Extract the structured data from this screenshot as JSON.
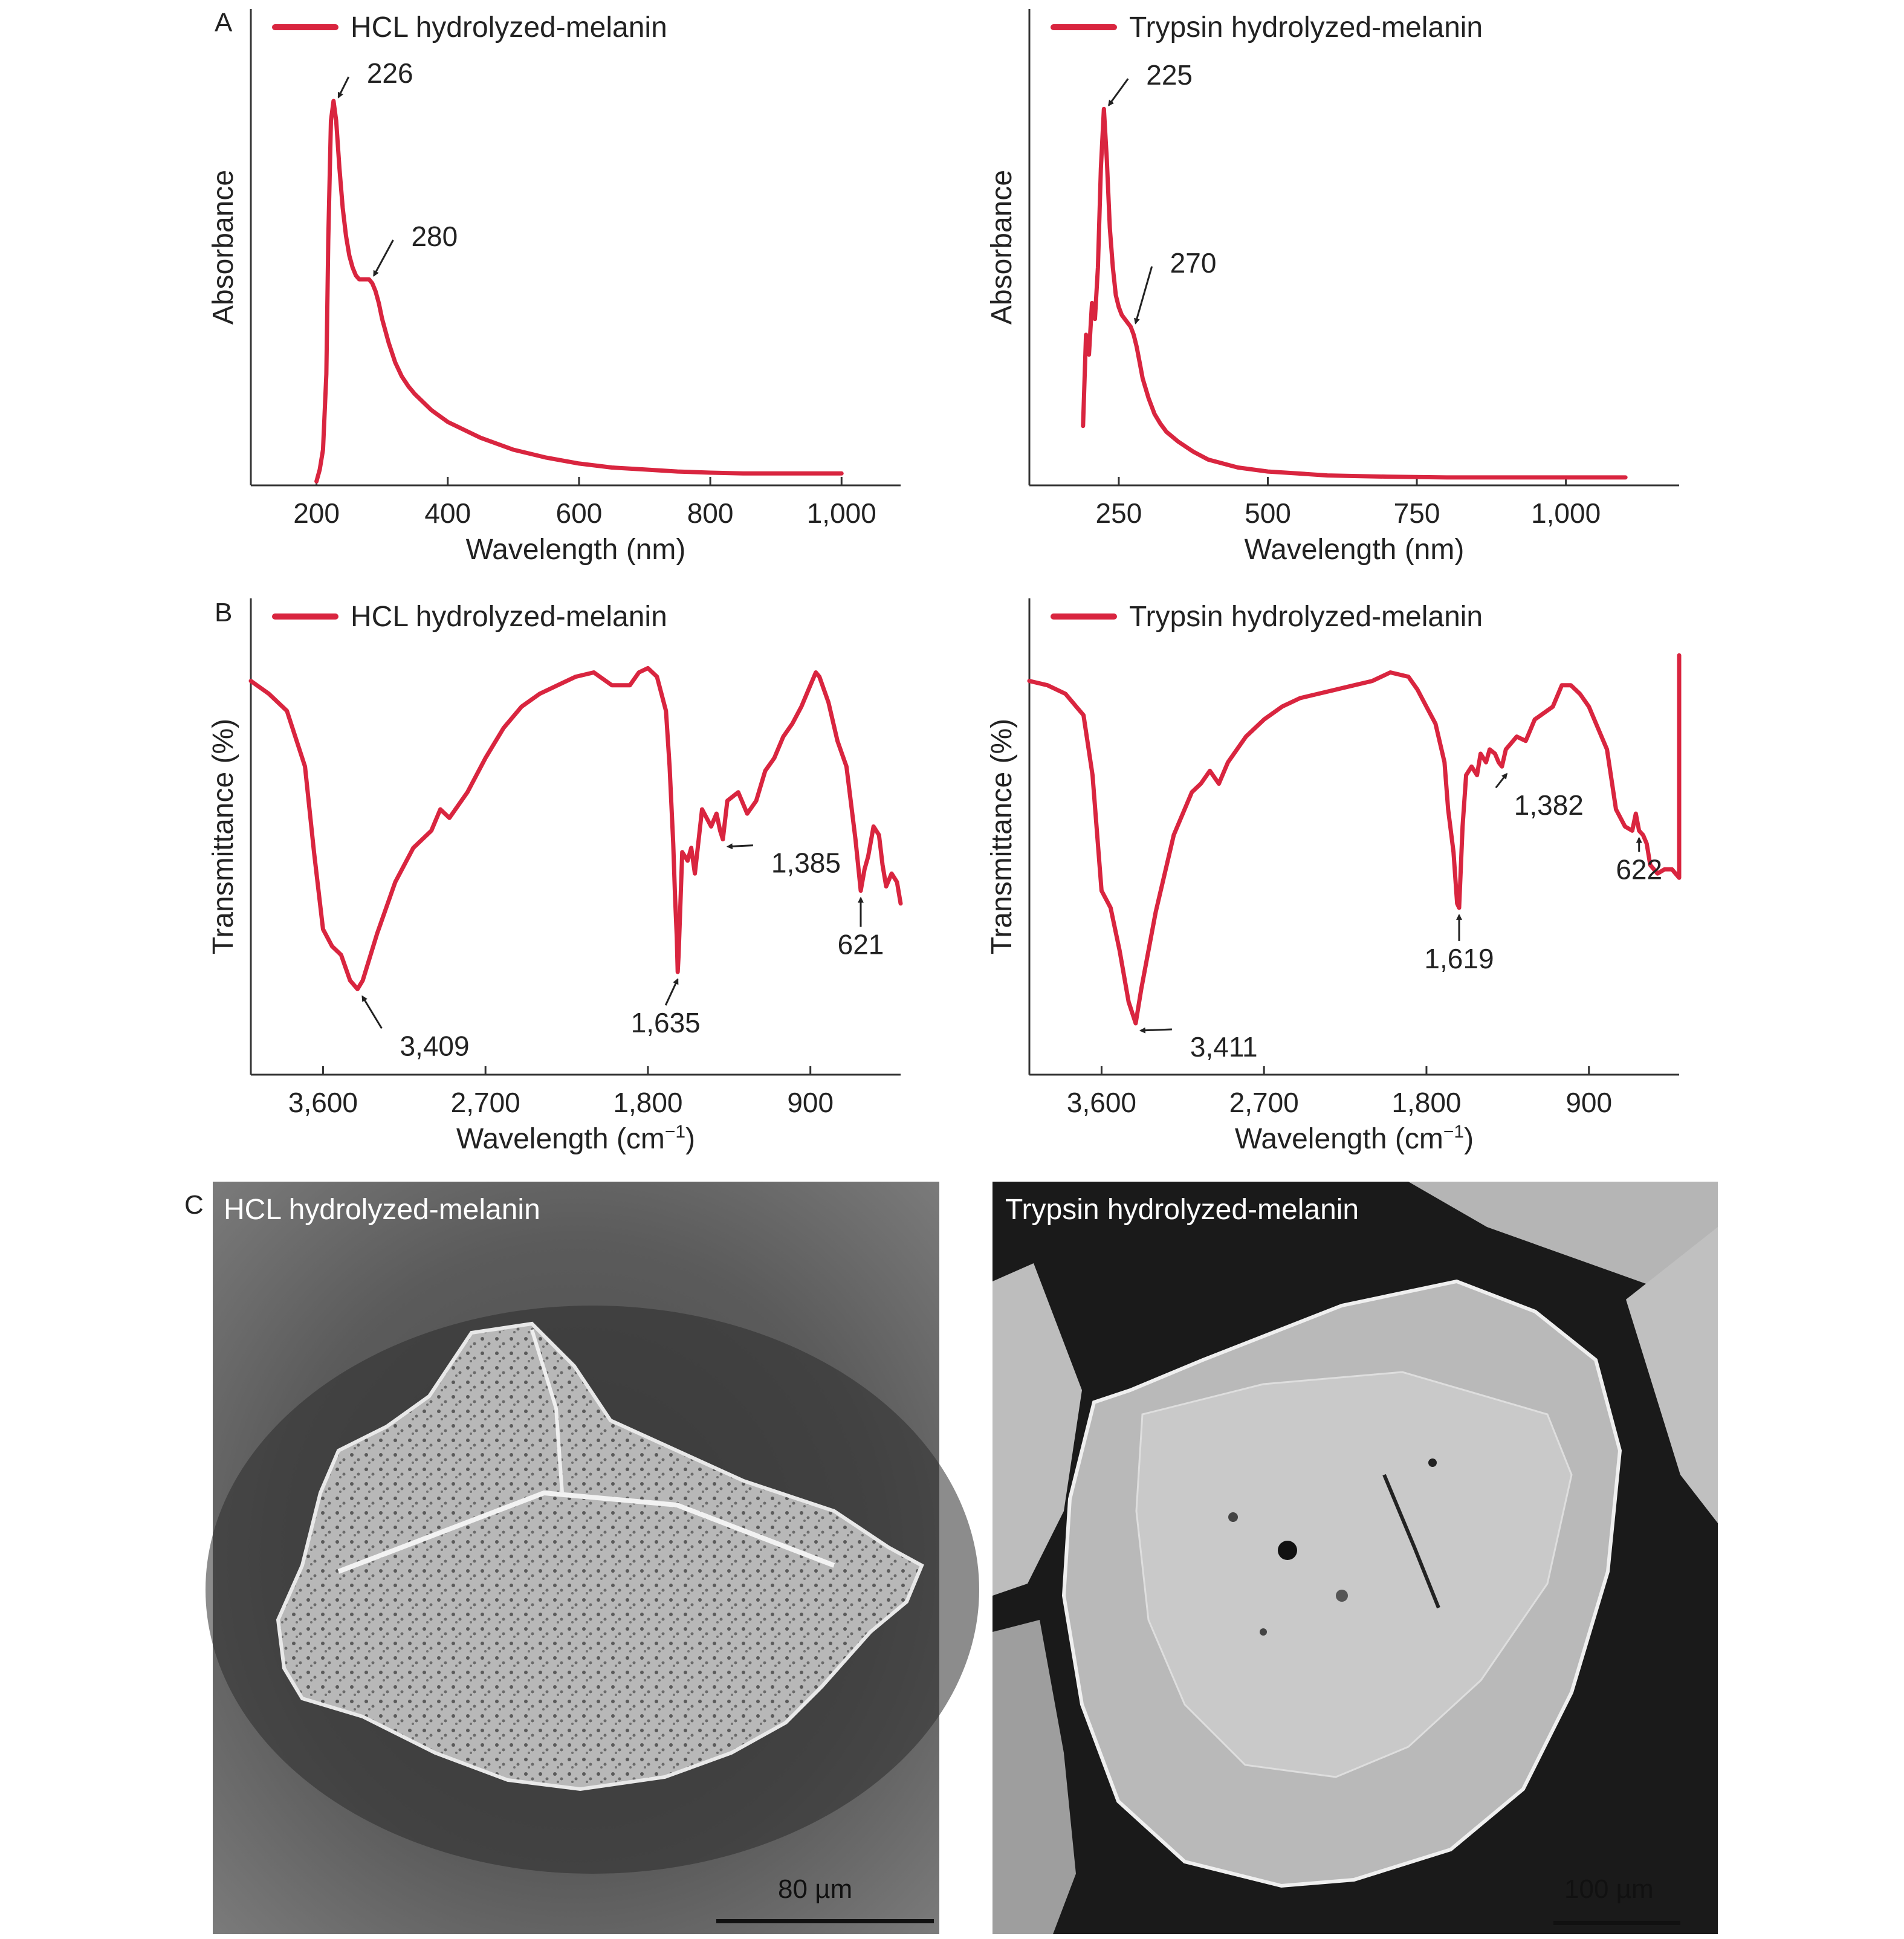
{
  "colors": {
    "series": "#d9253f",
    "axis": "#333333"
  },
  "panels": {
    "A": "A",
    "B": "B",
    "C": "C"
  },
  "chart_data": [
    {
      "id": "uv_hcl",
      "type": "line",
      "legend": "HCL hydrolyzed-melanin",
      "xlabel": "Wavelength (nm)",
      "ylabel": "Absorbance",
      "xlim": [
        100,
        1090
      ],
      "ylim": [
        0,
        1.08
      ],
      "xticks": [
        200,
        400,
        600,
        800,
        1000
      ],
      "xticklabels": [
        "200",
        "400",
        "600",
        "800",
        "1,000"
      ],
      "series": [
        {
          "x": [
            200,
            205,
            210,
            215,
            218,
            222,
            226,
            230,
            235,
            240,
            245,
            250,
            255,
            260,
            265,
            270,
            275,
            280,
            285,
            290,
            295,
            300,
            310,
            320,
            330,
            340,
            350,
            375,
            400,
            450,
            500,
            550,
            600,
            650,
            700,
            750,
            800,
            850,
            900,
            950,
            1000
          ],
          "y": [
            0.01,
            0.04,
            0.09,
            0.28,
            0.62,
            0.92,
            0.97,
            0.92,
            0.8,
            0.7,
            0.63,
            0.58,
            0.55,
            0.53,
            0.52,
            0.52,
            0.52,
            0.52,
            0.51,
            0.49,
            0.46,
            0.42,
            0.36,
            0.31,
            0.275,
            0.25,
            0.23,
            0.19,
            0.16,
            0.12,
            0.09,
            0.07,
            0.055,
            0.045,
            0.04,
            0.035,
            0.032,
            0.03,
            0.03,
            0.03,
            0.03
          ]
        }
      ],
      "annotations": [
        {
          "text": "226",
          "x": 226,
          "y": 0.97
        },
        {
          "text": "280",
          "x": 280,
          "y": 0.52
        }
      ]
    },
    {
      "id": "uv_trypsin",
      "type": "line",
      "legend": "Trypsin hydrolyzed-melanin",
      "xlabel": "Wavelength (nm)",
      "ylabel": "Absorbance",
      "xlim": [
        100,
        1190
      ],
      "ylim": [
        0,
        1.08
      ],
      "xticks": [
        250,
        500,
        750,
        1000
      ],
      "xticklabels": [
        "250",
        "500",
        "750",
        "1,000"
      ],
      "series": [
        {
          "x": [
            190,
            195,
            200,
            205,
            210,
            215,
            220,
            225,
            230,
            235,
            240,
            245,
            250,
            255,
            260,
            265,
            270,
            275,
            280,
            285,
            290,
            300,
            310,
            320,
            330,
            350,
            375,
            400,
            450,
            500,
            550,
            600,
            700,
            800,
            900,
            1000,
            1100
          ],
          "y": [
            0.15,
            0.38,
            0.33,
            0.46,
            0.42,
            0.55,
            0.8,
            0.95,
            0.82,
            0.65,
            0.55,
            0.48,
            0.45,
            0.43,
            0.42,
            0.41,
            0.4,
            0.38,
            0.35,
            0.31,
            0.27,
            0.22,
            0.18,
            0.155,
            0.135,
            0.11,
            0.085,
            0.065,
            0.045,
            0.035,
            0.03,
            0.025,
            0.022,
            0.02,
            0.02,
            0.02,
            0.02
          ]
        }
      ],
      "annotations": [
        {
          "text": "225",
          "x": 225,
          "y": 0.95
        },
        {
          "text": "270",
          "x": 270,
          "y": 0.4
        }
      ]
    },
    {
      "id": "ir_hcl",
      "type": "line",
      "legend": "HCL hydrolyzed-melanin",
      "xlabel": "Wavelength (cm",
      "xlabel_sup": "−1",
      "xlabel_end": ")",
      "ylabel": "Transmittance (%)",
      "xlim": [
        4000,
        400
      ],
      "ylim": [
        0,
        1
      ],
      "xticks": [
        3600,
        2700,
        1800,
        900
      ],
      "xticklabels": [
        "3,600",
        "2,700",
        "1,800",
        "900"
      ],
      "series": [
        {
          "x": [
            4000,
            3900,
            3800,
            3700,
            3650,
            3600,
            3550,
            3500,
            3450,
            3409,
            3380,
            3300,
            3200,
            3100,
            3000,
            2950,
            2900,
            2800,
            2700,
            2600,
            2500,
            2400,
            2300,
            2200,
            2100,
            2000,
            1900,
            1850,
            1800,
            1750,
            1700,
            1680,
            1660,
            1650,
            1640,
            1635,
            1630,
            1610,
            1580,
            1560,
            1540,
            1500,
            1450,
            1420,
            1400,
            1385,
            1360,
            1300,
            1250,
            1200,
            1150,
            1100,
            1050,
            1000,
            950,
            900,
            870,
            850,
            800,
            750,
            700,
            650,
            621,
            600,
            580,
            550,
            520,
            500,
            480,
            450,
            420,
            400
          ],
          "y": [
            0.92,
            0.89,
            0.85,
            0.72,
            0.52,
            0.34,
            0.3,
            0.28,
            0.22,
            0.2,
            0.22,
            0.33,
            0.45,
            0.53,
            0.57,
            0.62,
            0.6,
            0.66,
            0.74,
            0.81,
            0.86,
            0.89,
            0.91,
            0.93,
            0.94,
            0.91,
            0.91,
            0.94,
            0.95,
            0.93,
            0.85,
            0.72,
            0.54,
            0.42,
            0.32,
            0.24,
            0.28,
            0.52,
            0.5,
            0.53,
            0.47,
            0.62,
            0.58,
            0.61,
            0.57,
            0.55,
            0.64,
            0.66,
            0.61,
            0.64,
            0.71,
            0.74,
            0.79,
            0.82,
            0.86,
            0.91,
            0.94,
            0.93,
            0.87,
            0.78,
            0.72,
            0.55,
            0.43,
            0.48,
            0.51,
            0.58,
            0.56,
            0.49,
            0.44,
            0.47,
            0.45,
            0.4
          ]
        }
      ],
      "annotations": [
        {
          "text": "3,409",
          "x": 3409,
          "y": 0.2
        },
        {
          "text": "1,635",
          "x": 1635,
          "y": 0.24
        },
        {
          "text": "1,385",
          "x": 1385,
          "y": 0.55
        },
        {
          "text": "621",
          "x": 621,
          "y": 0.43
        }
      ]
    },
    {
      "id": "ir_trypsin",
      "type": "line",
      "legend": "Trypsin hydrolyzed-melanin",
      "xlabel": "Wavelength (cm",
      "xlabel_sup": "−1",
      "xlabel_end": ")",
      "ylabel": "Transmittance (%)",
      "xlim": [
        4000,
        400
      ],
      "ylim": [
        0,
        1
      ],
      "xticks": [
        3600,
        2700,
        1800,
        900
      ],
      "xticklabels": [
        "3,600",
        "2,700",
        "1,800",
        "900"
      ],
      "series": [
        {
          "x": [
            4000,
            3900,
            3800,
            3700,
            3650,
            3600,
            3550,
            3500,
            3450,
            3411,
            3380,
            3300,
            3200,
            3100,
            3050,
            3000,
            2950,
            2900,
            2800,
            2700,
            2600,
            2500,
            2400,
            2300,
            2200,
            2100,
            2000,
            1900,
            1850,
            1800,
            1750,
            1700,
            1680,
            1650,
            1630,
            1619,
            1600,
            1580,
            1550,
            1520,
            1500,
            1470,
            1450,
            1420,
            1400,
            1382,
            1360,
            1300,
            1250,
            1200,
            1100,
            1050,
            1000,
            950,
            900,
            850,
            800,
            750,
            700,
            660,
            640,
            622,
            600,
            580,
            560,
            520,
            480,
            440,
            420,
            400,
            400
          ],
          "y": [
            0.92,
            0.91,
            0.89,
            0.84,
            0.7,
            0.43,
            0.39,
            0.29,
            0.17,
            0.12,
            0.2,
            0.38,
            0.56,
            0.66,
            0.68,
            0.71,
            0.68,
            0.73,
            0.79,
            0.83,
            0.86,
            0.88,
            0.89,
            0.9,
            0.91,
            0.92,
            0.94,
            0.93,
            0.9,
            0.86,
            0.82,
            0.73,
            0.62,
            0.52,
            0.4,
            0.39,
            0.58,
            0.7,
            0.72,
            0.7,
            0.75,
            0.73,
            0.76,
            0.75,
            0.73,
            0.72,
            0.76,
            0.79,
            0.78,
            0.83,
            0.86,
            0.91,
            0.91,
            0.89,
            0.86,
            0.81,
            0.76,
            0.62,
            0.58,
            0.57,
            0.61,
            0.57,
            0.56,
            0.54,
            0.49,
            0.47,
            0.48,
            0.48,
            0.47,
            0.46,
            0.98
          ]
        }
      ],
      "annotations": [
        {
          "text": "3,411",
          "x": 3411,
          "y": 0.12
        },
        {
          "text": "1,619",
          "x": 1619,
          "y": 0.39
        },
        {
          "text": "1,382",
          "x": 1382,
          "y": 0.72
        },
        {
          "text": "622",
          "x": 622,
          "y": 0.57
        }
      ]
    }
  ],
  "sem": {
    "left": {
      "title": "HCL hydrolyzed-melanin",
      "scale": "80 µm"
    },
    "right": {
      "title": "Trypsin hydrolyzed-melanin",
      "scale": "100 µm"
    }
  }
}
